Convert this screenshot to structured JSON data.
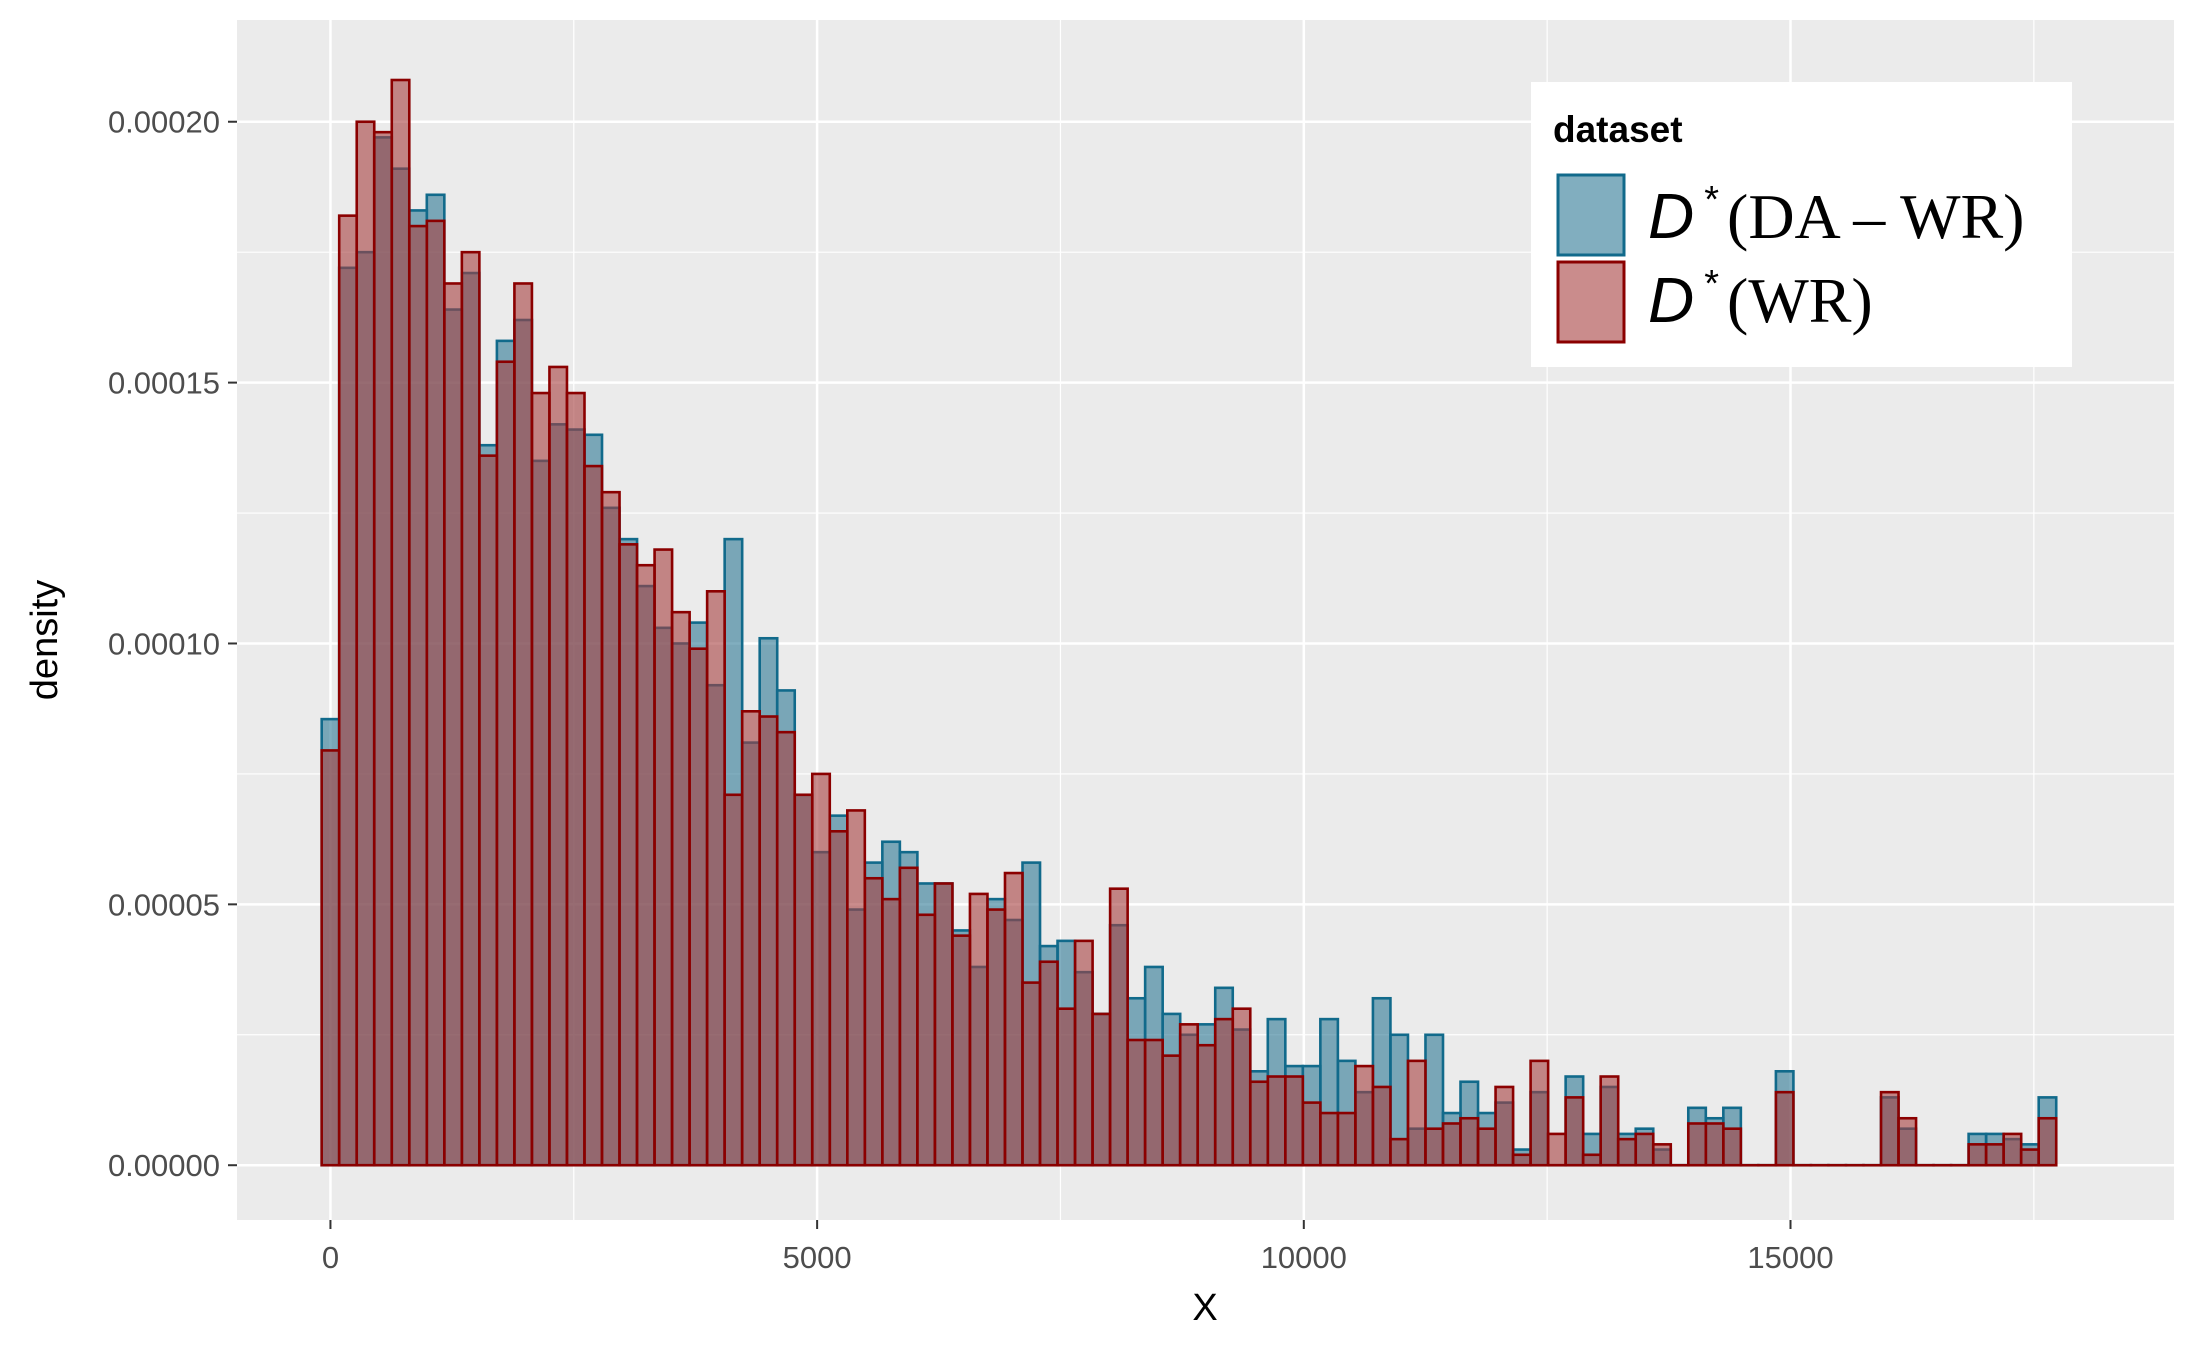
{
  "chart_data": {
    "type": "bar",
    "title": "",
    "xlabel": "X",
    "ylabel": "density",
    "xlim": [
      -960,
      18940
    ],
    "ylim": [
      -1.05e-05,
      0.0002195
    ],
    "x_ticks": [
      0,
      5000,
      10000,
      15000
    ],
    "x_tick_labels": [
      "0",
      "5000",
      "10000",
      "15000"
    ],
    "y_ticks": [
      0,
      5e-05,
      0.0001,
      0.00015,
      0.0002
    ],
    "y_tick_labels": [
      "0.00000",
      "0.00005",
      "0.00010",
      "0.00015",
      "0.00020"
    ],
    "grid": true,
    "bin_width": 180,
    "bin_start": -90,
    "legend": {
      "title": "dataset",
      "position": "top-right"
    },
    "series": [
      {
        "name": "D*(DA – WR)",
        "label_parts": {
          "italic": "D",
          "superscript": "*",
          "rest": "(DA – WR)"
        },
        "fill": "#2d7895",
        "stroke": "#116a8b",
        "values": [
          8.55e-05,
          0.000172,
          0.000175,
          0.000197,
          0.000191,
          0.000183,
          0.000186,
          0.000164,
          0.000171,
          0.000138,
          0.000158,
          0.000162,
          0.000135,
          0.000142,
          0.000141,
          0.00014,
          0.000126,
          0.00012,
          0.000111,
          0.000103,
          0.0001,
          0.000104,
          9.2e-05,
          0.00012,
          8.1e-05,
          0.000101,
          9.1e-05,
          7.1e-05,
          6e-05,
          6.7e-05,
          4.9e-05,
          5.8e-05,
          6.2e-05,
          6e-05,
          5.4e-05,
          5.4e-05,
          4.5e-05,
          3.8e-05,
          5.1e-05,
          4.7e-05,
          5.8e-05,
          4.2e-05,
          4.3e-05,
          3.7e-05,
          2.9e-05,
          4.6e-05,
          3.2e-05,
          3.8e-05,
          2.9e-05,
          2.5e-05,
          2.7e-05,
          3.4e-05,
          2.6e-05,
          1.8e-05,
          2.8e-05,
          1.9e-05,
          1.9e-05,
          2.8e-05,
          2e-05,
          1.4e-05,
          3.2e-05,
          2.5e-05,
          7e-06,
          2.5e-05,
          1e-05,
          1.6e-05,
          1e-05,
          1.2e-05,
          3e-06,
          1.4e-05,
          0.0,
          1.7e-05,
          6e-06,
          1.5e-05,
          6e-06,
          7e-06,
          3e-06,
          0.0,
          1.1e-05,
          9e-06,
          1.1e-05,
          0.0,
          0.0,
          1.8e-05,
          0.0,
          0.0,
          0.0,
          0.0,
          0.0,
          1.3e-05,
          7e-06,
          0.0,
          0.0,
          0.0,
          6e-06,
          6e-06,
          5e-06,
          4e-06,
          1.3e-05
        ]
      },
      {
        "name": "D*(WR)",
        "label_parts": {
          "italic": "D",
          "superscript": "*",
          "rest": "(WR)"
        },
        "fill": "#a63f3f",
        "stroke": "#8b0000",
        "values": [
          7.95e-05,
          0.000182,
          0.0002,
          0.000198,
          0.000208,
          0.00018,
          0.000181,
          0.000169,
          0.000175,
          0.000136,
          0.000154,
          0.000169,
          0.000148,
          0.000153,
          0.000148,
          0.000134,
          0.000129,
          0.000119,
          0.000115,
          0.000118,
          0.000106,
          9.9e-05,
          0.00011,
          7.1e-05,
          8.7e-05,
          8.6e-05,
          8.3e-05,
          7.1e-05,
          7.5e-05,
          6.4e-05,
          6.8e-05,
          5.5e-05,
          5.1e-05,
          5.7e-05,
          4.8e-05,
          5.4e-05,
          4.4e-05,
          5.2e-05,
          4.9e-05,
          5.6e-05,
          3.5e-05,
          3.9e-05,
          3e-05,
          4.3e-05,
          2.9e-05,
          5.3e-05,
          2.4e-05,
          2.4e-05,
          2.1e-05,
          2.7e-05,
          2.3e-05,
          2.8e-05,
          3e-05,
          1.6e-05,
          1.7e-05,
          1.7e-05,
          1.2e-05,
          1e-05,
          1e-05,
          1.9e-05,
          1.5e-05,
          5e-06,
          2e-05,
          7e-06,
          8e-06,
          9e-06,
          7e-06,
          1.5e-05,
          2e-06,
          2e-05,
          6e-06,
          1.3e-05,
          2e-06,
          1.7e-05,
          5e-06,
          6e-06,
          4e-06,
          0.0,
          8e-06,
          8e-06,
          7e-06,
          0.0,
          0.0,
          1.4e-05,
          0.0,
          0.0,
          0.0,
          0.0,
          0.0,
          1.4e-05,
          9e-06,
          0.0,
          0.0,
          0.0,
          4e-06,
          4e-06,
          6e-06,
          3e-06,
          9e-06
        ]
      }
    ]
  }
}
